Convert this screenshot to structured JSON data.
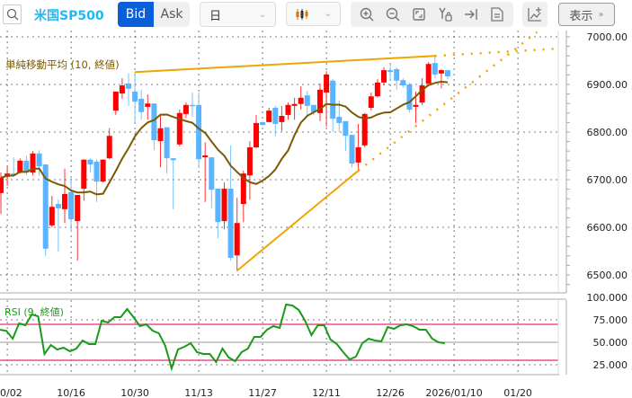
{
  "toolbar": {
    "symbol": "米国SP500",
    "bid_label": "Bid",
    "ask_label": "Ask",
    "timeframe": "日",
    "display_label": "表示",
    "tools": [
      "zoom-in-icon",
      "zoom-out-icon",
      "fit-icon",
      "y-lock-icon",
      "jump-latest-icon",
      "report-icon"
    ],
    "accent": "#0a5fd8"
  },
  "chart": {
    "sma_label": "単純移動平均 (10, 終値)",
    "sma_color": "#7a5a00",
    "up_color": "#ff0000",
    "down_color": "#5ab4ff",
    "trend_color": "#f0a500",
    "price_ticks": [
      "7000.00",
      "6900.00",
      "6800.00",
      "6700.00",
      "6600.00",
      "6500.00"
    ],
    "price_tick_values": [
      7000,
      6900,
      6800,
      6700,
      6600,
      6500
    ],
    "date_ticks": [
      {
        "i": 1,
        "label": "0/02"
      },
      {
        "i": 11,
        "label": "10/16"
      },
      {
        "i": 21,
        "label": "10/30"
      },
      {
        "i": 31,
        "label": "11/13"
      },
      {
        "i": 41,
        "label": "11/27"
      },
      {
        "i": 51,
        "label": "12/11"
      },
      {
        "i": 61,
        "label": "12/26"
      },
      {
        "i": 71,
        "label": "2026/01/10"
      },
      {
        "i": 81,
        "label": "01/20"
      }
    ],
    "candles": [
      [
        6672,
        6715,
        6628,
        6704
      ],
      [
        6706,
        6728,
        6687,
        6713
      ],
      [
        6713,
        6747,
        6706,
        6709
      ],
      [
        6715,
        6745,
        6713,
        6740
      ],
      [
        6740,
        6751,
        6709,
        6715
      ],
      [
        6715,
        6760,
        6709,
        6755
      ],
      [
        6755,
        6762,
        6709,
        6728
      ],
      [
        6732,
        6732,
        6540,
        6555
      ],
      [
        6604,
        6666,
        6600,
        6643
      ],
      [
        6649,
        6658,
        6549,
        6640
      ],
      [
        6638,
        6723,
        6609,
        6670
      ],
      [
        6674,
        6706,
        6590,
        6617
      ],
      [
        6613,
        6668,
        6530,
        6668
      ],
      [
        6681,
        6743,
        6656,
        6742
      ],
      [
        6742,
        6745,
        6715,
        6732
      ],
      [
        6738,
        6743,
        6653,
        6696
      ],
      [
        6696,
        6743,
        6694,
        6742
      ],
      [
        6745,
        6808,
        6743,
        6792
      ],
      [
        6845,
        6885,
        6836,
        6885
      ],
      [
        6881,
        6913,
        6870,
        6898
      ],
      [
        6902,
        6923,
        6855,
        6891
      ],
      [
        6885,
        6926,
        6819,
        6864
      ],
      [
        6870,
        6889,
        6826,
        6842
      ],
      [
        6853,
        6879,
        6826,
        6860
      ],
      [
        6860,
        6860,
        6762,
        6783
      ],
      [
        6781,
        6836,
        6726,
        6808
      ],
      [
        6810,
        6810,
        6713,
        6745
      ],
      [
        6745,
        6745,
        6638,
        6741
      ],
      [
        6774,
        6847,
        6770,
        6840
      ],
      [
        6838,
        6862,
        6830,
        6857
      ],
      [
        6857,
        6883,
        6832,
        6855
      ],
      [
        6857,
        6883,
        6724,
        6743
      ],
      [
        6747,
        6779,
        6653,
        6751
      ],
      [
        6747,
        6747,
        6640,
        6679
      ],
      [
        6681,
        6681,
        6577,
        6611
      ],
      [
        6613,
        6694,
        6596,
        6681
      ],
      [
        6681,
        6772,
        6530,
        6536
      ],
      [
        6541,
        6662,
        6508,
        6609
      ],
      [
        6649,
        6719,
        6611,
        6713
      ],
      [
        6709,
        6781,
        6658,
        6768
      ],
      [
        6768,
        6836,
        6766,
        6819
      ],
      [
        6821,
        6821,
        6813,
        6815
      ],
      [
        6821,
        6851,
        6821,
        6845
      ],
      [
        6851,
        6855,
        6791,
        6817
      ],
      [
        6821,
        6855,
        6802,
        6834
      ],
      [
        6836,
        6862,
        6826,
        6857
      ],
      [
        6855,
        6872,
        6826,
        6859
      ],
      [
        6859,
        6896,
        6847,
        6872
      ],
      [
        6877,
        6887,
        6836,
        6855
      ],
      [
        6857,
        6857,
        6836,
        6842
      ],
      [
        6840,
        6902,
        6823,
        6889
      ],
      [
        6883,
        6928,
        6811,
        6921
      ],
      [
        6908,
        6911,
        6800,
        6828
      ],
      [
        6832,
        6866,
        6800,
        6819
      ],
      [
        6823,
        6823,
        6760,
        6792
      ],
      [
        6794,
        6794,
        6726,
        6734
      ],
      [
        6736,
        6817,
        6719,
        6768
      ],
      [
        6772,
        6840,
        6768,
        6838
      ],
      [
        6851,
        6883,
        6845,
        6875
      ],
      [
        6875,
        6911,
        6873,
        6904
      ],
      [
        6904,
        6936,
        6898,
        6930
      ],
      [
        6930,
        6942,
        6908,
        6926
      ],
      [
        6932,
        6936,
        6889,
        6908
      ],
      [
        6909,
        6913,
        6894,
        6898
      ],
      [
        6900,
        6904,
        6841,
        6847
      ],
      [
        6853,
        6885,
        6819,
        6857
      ],
      [
        6862,
        6913,
        6857,
        6898
      ],
      [
        6902,
        6947,
        6898,
        6943
      ],
      [
        6945,
        6960,
        6913,
        6921
      ],
      [
        6923,
        6932,
        6892,
        6930
      ],
      [
        6930,
        6930,
        6911,
        6917
      ]
    ],
    "trendlines": [
      {
        "from": [
          21,
          6926
        ],
        "to": [
          68,
          6960
        ],
        "ext_to": [
          87,
          6975
        ]
      },
      {
        "from": [
          37,
          6509
        ],
        "to": [
          56,
          6719
        ],
        "ext_to": [
          84,
          7010
        ]
      }
    ]
  },
  "rsi": {
    "label": "RSI (9, 終値)",
    "color": "#1a9a1a",
    "band_color": "#e8508a",
    "ticks": [
      "100.000",
      "75.000",
      "50.000",
      "25.000"
    ],
    "tick_values": [
      100,
      75,
      50,
      25
    ],
    "bands": [
      70,
      30
    ],
    "values": [
      64,
      62.7,
      54,
      71,
      69,
      81,
      79,
      37,
      47,
      42,
      44,
      40,
      43,
      52,
      48,
      48,
      74,
      72,
      78,
      78,
      87,
      78,
      68,
      70,
      63,
      60,
      46,
      21,
      42,
      45,
      49,
      39,
      37,
      37,
      28,
      43,
      33,
      29,
      39,
      43,
      56,
      56,
      64,
      68,
      66,
      92,
      91,
      86,
      74,
      58,
      69,
      69,
      53,
      48,
      39,
      31,
      34,
      49,
      54,
      52,
      51,
      67,
      65,
      69,
      70,
      68,
      64,
      64,
      54,
      50,
      49
    ]
  }
}
